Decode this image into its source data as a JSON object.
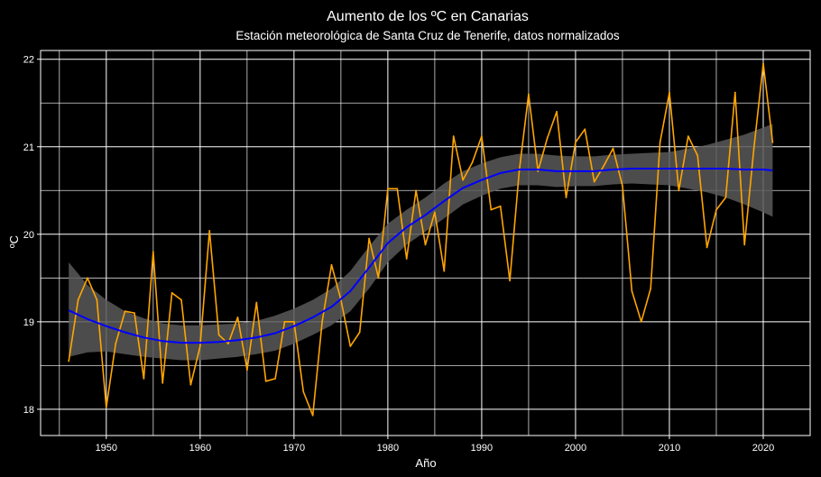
{
  "chart_data": {
    "type": "line",
    "title": "Aumento de los ºC en Canarias",
    "subtitle": "Estación meteorológica de Santa Cruz de Tenerife, datos normalizados",
    "xlabel": "Año",
    "ylabel": "ºC",
    "xlim": [
      1943,
      2025
    ],
    "ylim": [
      17.7,
      22.1
    ],
    "x_ticks": [
      1950,
      1960,
      1970,
      1980,
      1990,
      2000,
      2010,
      2020
    ],
    "y_ticks": [
      18,
      19,
      20,
      21,
      22
    ],
    "grid": true,
    "background": "#000000",
    "series": [
      {
        "kind": "observed",
        "color": "#FFA500",
        "x": [
          1946,
          1947,
          1948,
          1949,
          1950,
          1951,
          1952,
          1953,
          1954,
          1955,
          1956,
          1957,
          1958,
          1959,
          1960,
          1961,
          1962,
          1963,
          1964,
          1965,
          1966,
          1967,
          1968,
          1969,
          1970,
          1971,
          1972,
          1973,
          1974,
          1975,
          1976,
          1977,
          1978,
          1979,
          1980,
          1981,
          1982,
          1983,
          1984,
          1985,
          1986,
          1987,
          1988,
          1989,
          1990,
          1991,
          1992,
          1993,
          1994,
          1995,
          1996,
          1997,
          1998,
          1999,
          2000,
          2001,
          2002,
          2003,
          2004,
          2005,
          2006,
          2007,
          2008,
          2009,
          2010,
          2011,
          2012,
          2013,
          2014,
          2015,
          2016,
          2017,
          2018,
          2019,
          2020,
          2021
        ],
        "values": [
          18.55,
          19.25,
          19.5,
          19.25,
          18.02,
          18.75,
          19.12,
          19.1,
          18.35,
          19.8,
          18.3,
          19.33,
          19.25,
          18.28,
          18.72,
          20.04,
          18.85,
          18.75,
          19.05,
          18.45,
          19.22,
          18.32,
          18.35,
          19.0,
          19.0,
          18.2,
          17.93,
          19.0,
          19.65,
          19.25,
          18.72,
          18.88,
          19.95,
          19.5,
          20.52,
          20.52,
          19.72,
          20.5,
          19.88,
          20.25,
          19.58,
          21.12,
          20.62,
          20.82,
          21.12,
          20.28,
          20.32,
          19.47,
          20.72,
          21.6,
          20.72,
          21.1,
          21.4,
          20.42,
          21.05,
          21.2,
          20.6,
          20.78,
          20.98,
          20.55,
          19.35,
          19.0,
          19.38,
          21.05,
          21.62,
          20.5,
          21.12,
          20.9,
          19.85,
          20.28,
          20.42,
          21.62,
          19.88,
          20.98,
          21.95,
          21.05
        ]
      },
      {
        "kind": "smooth",
        "color": "#0000FF",
        "band_color": "#595959",
        "x": [
          1946,
          1948,
          1950,
          1952,
          1954,
          1956,
          1958,
          1960,
          1962,
          1964,
          1966,
          1968,
          1970,
          1972,
          1974,
          1976,
          1978,
          1980,
          1982,
          1984,
          1986,
          1988,
          1990,
          1992,
          1994,
          1996,
          1998,
          2000,
          2002,
          2004,
          2006,
          2008,
          2010,
          2012,
          2014,
          2016,
          2018,
          2020,
          2021
        ],
        "values": [
          19.13,
          19.03,
          18.95,
          18.88,
          18.82,
          18.78,
          18.76,
          18.76,
          18.77,
          18.79,
          18.82,
          18.87,
          18.95,
          19.05,
          19.17,
          19.35,
          19.62,
          19.9,
          20.08,
          20.22,
          20.38,
          20.53,
          20.62,
          20.7,
          20.74,
          20.74,
          20.72,
          20.72,
          20.72,
          20.74,
          20.75,
          20.75,
          20.75,
          20.75,
          20.75,
          20.75,
          20.74,
          20.74,
          20.73
        ],
        "lower": [
          18.6,
          18.65,
          18.66,
          18.63,
          18.6,
          18.58,
          18.56,
          18.56,
          18.58,
          18.6,
          18.63,
          18.67,
          18.75,
          18.85,
          18.96,
          19.12,
          19.38,
          19.68,
          19.88,
          20.03,
          20.18,
          20.34,
          20.44,
          20.52,
          20.56,
          20.56,
          20.54,
          20.55,
          20.55,
          20.57,
          20.58,
          20.57,
          20.56,
          20.52,
          20.48,
          20.42,
          20.34,
          20.25,
          20.2
        ],
        "upper": [
          19.68,
          19.42,
          19.25,
          19.12,
          19.04,
          18.98,
          18.96,
          18.96,
          18.97,
          18.98,
          19.01,
          19.07,
          19.15,
          19.25,
          19.38,
          19.58,
          19.86,
          20.12,
          20.28,
          20.42,
          20.58,
          20.72,
          20.81,
          20.88,
          20.92,
          20.92,
          20.9,
          20.89,
          20.89,
          20.91,
          20.92,
          20.93,
          20.94,
          20.98,
          21.02,
          21.08,
          21.14,
          21.22,
          21.26
        ]
      }
    ]
  }
}
